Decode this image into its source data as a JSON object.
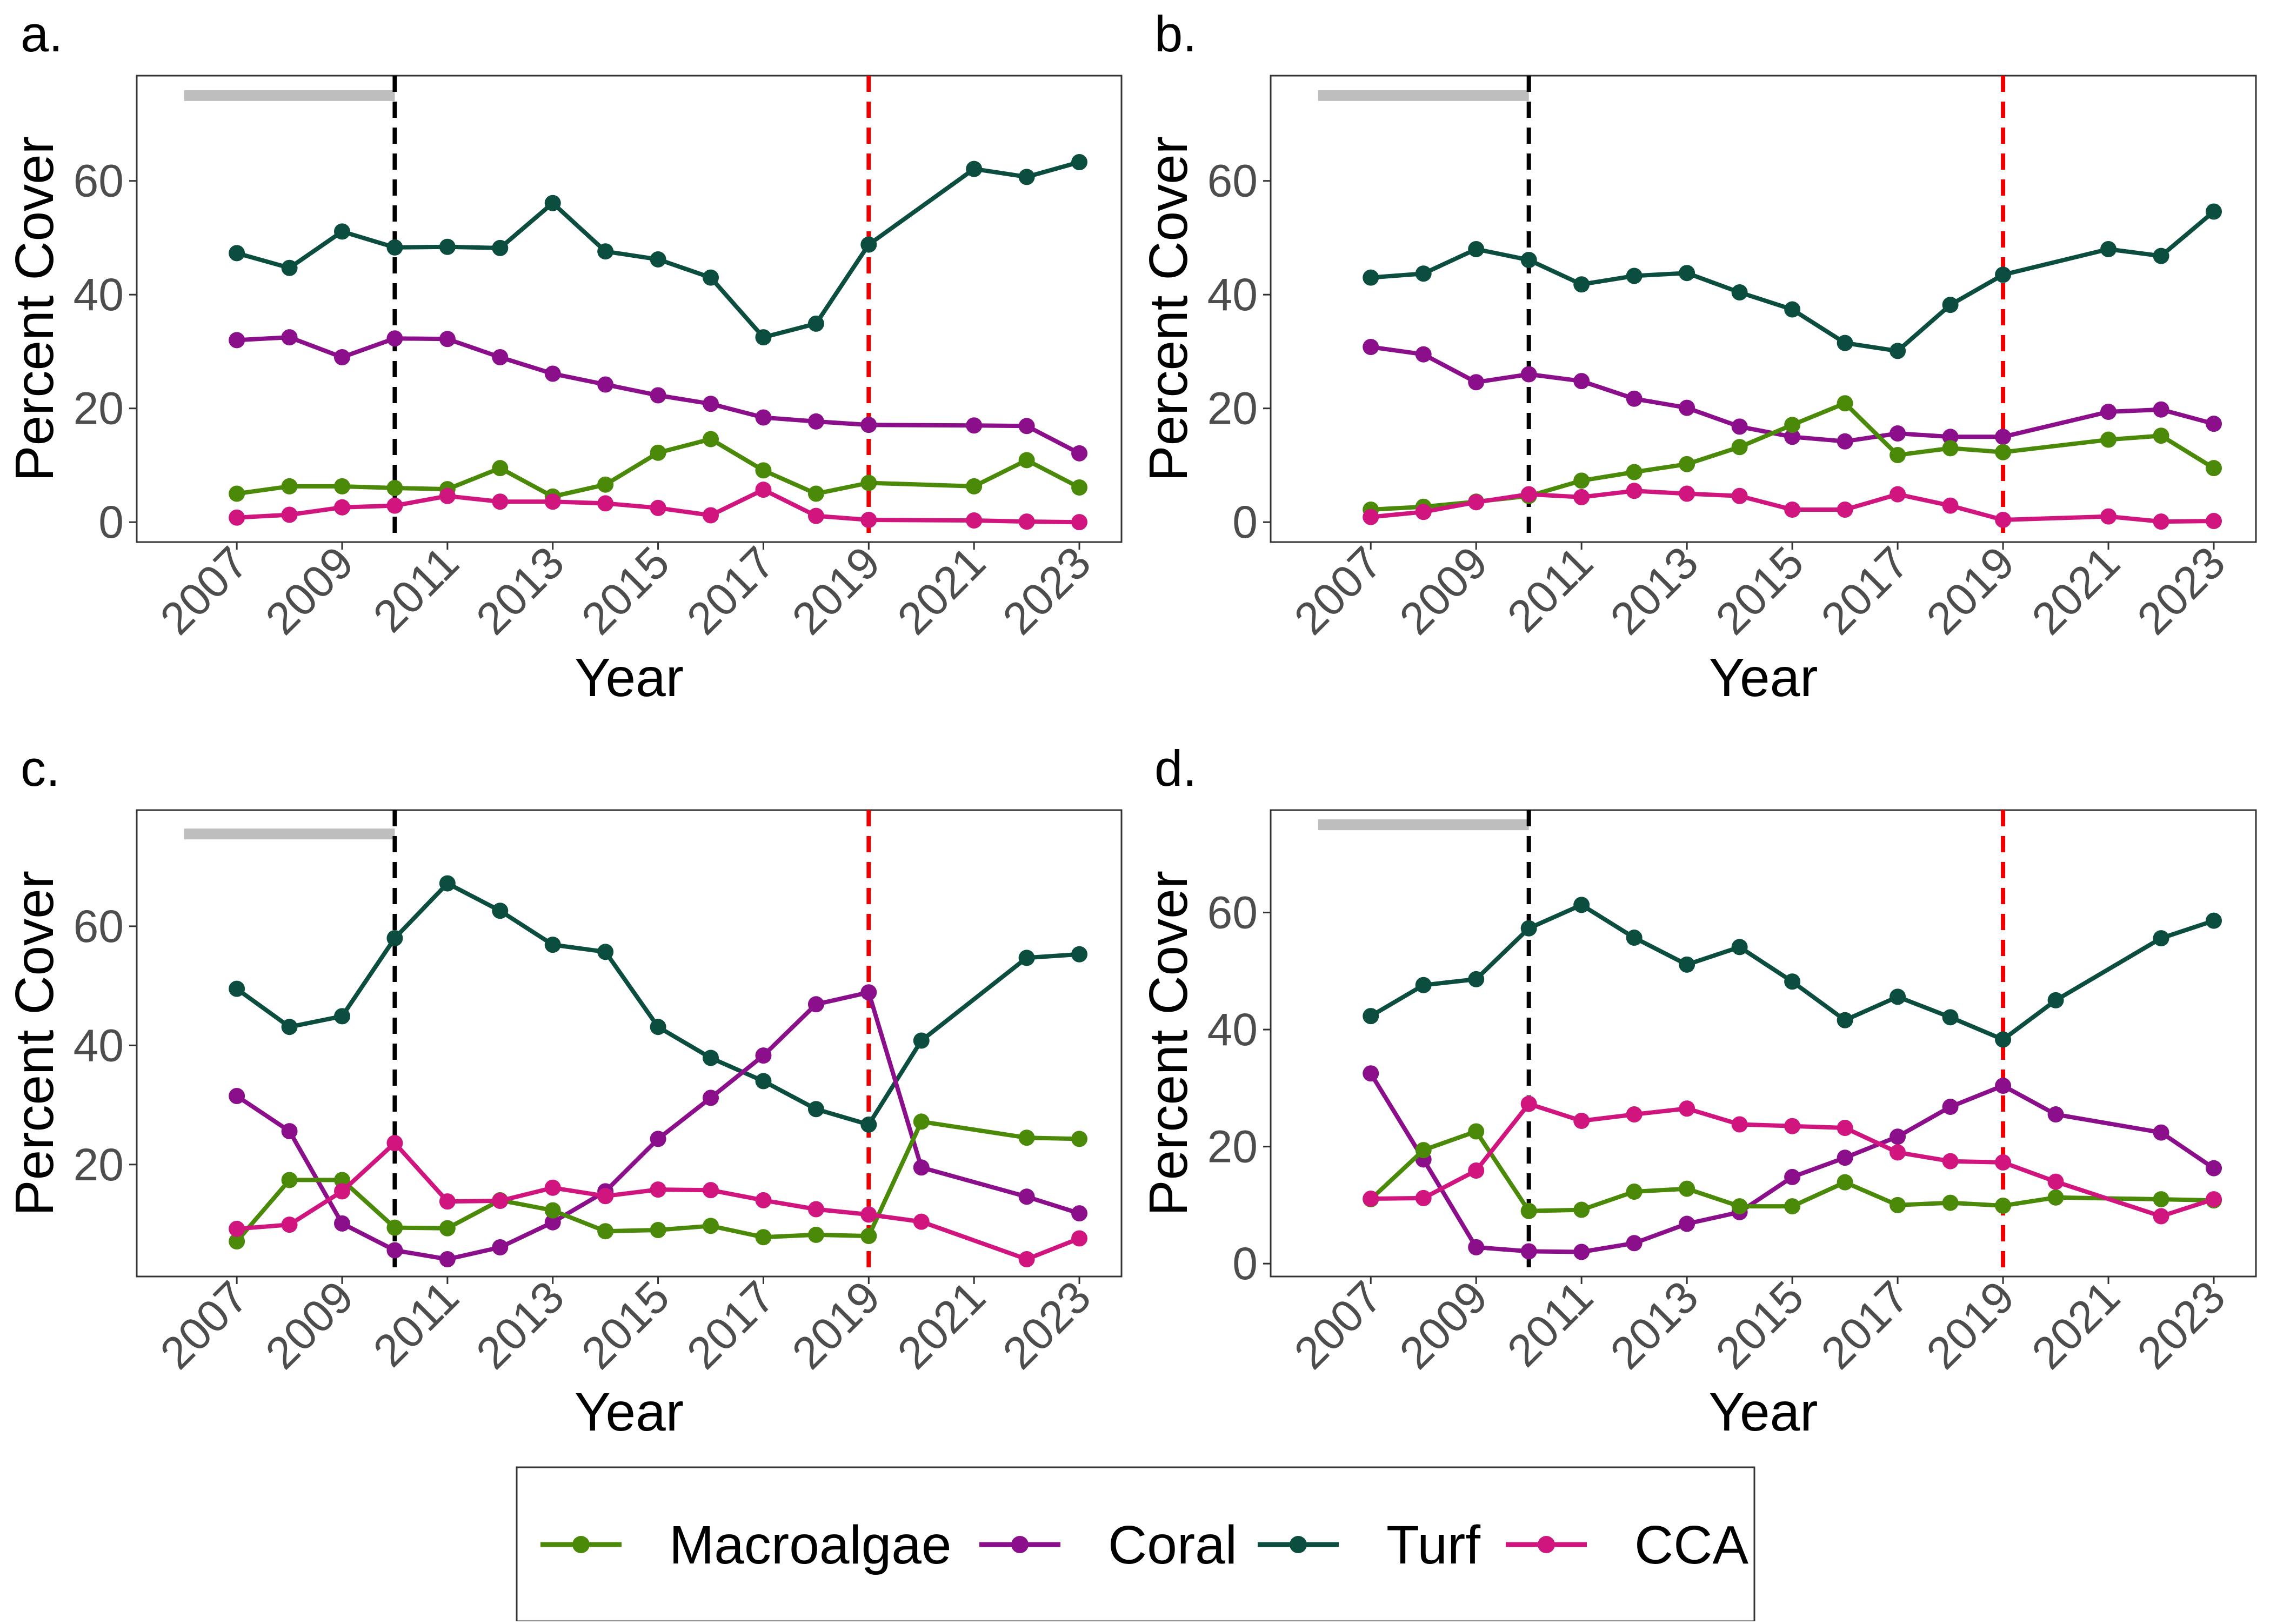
{
  "colors": {
    "Macroalgae": "#4b8a08",
    "Coral": "#8b0f8b",
    "Turf": "#0b4d3e",
    "CCA": "#d1157f",
    "reference_line_black": "#000000",
    "reference_line_red": "#ee0000",
    "period_bar": "#bebebe"
  },
  "legend": {
    "items": [
      "Macroalgae",
      "Coral",
      "Turf",
      "CCA"
    ]
  },
  "chart_data": [
    {
      "type": "line",
      "panel_label": "a.",
      "xlabel": "Year",
      "ylabel": "Percent Cover",
      "x_ticks": [
        2007,
        2009,
        2011,
        2013,
        2015,
        2017,
        2019,
        2021,
        2023
      ],
      "y_ticks": [
        0,
        20,
        40,
        60
      ],
      "xlim": [
        2005.1,
        2023.8
      ],
      "ylim": [
        -3.5,
        78.5
      ],
      "grid": false,
      "reference_lines": [
        {
          "x": 2010,
          "color": "black",
          "style": "dashed"
        },
        {
          "x": 2019,
          "color": "red",
          "style": "dashed"
        }
      ],
      "period_bar": {
        "x": [
          2006.0,
          2010.0
        ],
        "y": 75
      },
      "series": [
        {
          "name": "Macroalgae",
          "x": [
            2007,
            2008,
            2009,
            2010,
            2011,
            2012,
            2013,
            2014,
            2015,
            2016,
            2017,
            2018,
            2019,
            2021,
            2022,
            2023
          ],
          "y": [
            5,
            6.3,
            6.3,
            6,
            5.8,
            9.5,
            4.5,
            6.6,
            12.2,
            14.6,
            9.1,
            5,
            6.9,
            6.3,
            10.9,
            6.1
          ]
        },
        {
          "name": "Coral",
          "x": [
            2007,
            2008,
            2009,
            2010,
            2011,
            2012,
            2013,
            2014,
            2015,
            2016,
            2017,
            2018,
            2019,
            2021,
            2022,
            2023
          ],
          "y": [
            32,
            32.5,
            29,
            32.3,
            32.2,
            29,
            26.1,
            24.2,
            22.3,
            20.8,
            18.4,
            17.7,
            17.1,
            17,
            16.9,
            12.1
          ]
        },
        {
          "name": "Turf",
          "x": [
            2007,
            2008,
            2009,
            2010,
            2011,
            2012,
            2013,
            2014,
            2015,
            2016,
            2017,
            2018,
            2019,
            2021,
            2022,
            2023
          ],
          "y": [
            47.3,
            44.7,
            51.1,
            48.3,
            48.4,
            48.2,
            56.1,
            47.6,
            46.2,
            43,
            32.5,
            34.9,
            48.8,
            62.1,
            60.7,
            63.3
          ]
        },
        {
          "name": "CCA",
          "x": [
            2007,
            2008,
            2009,
            2010,
            2011,
            2012,
            2013,
            2014,
            2015,
            2016,
            2017,
            2018,
            2019,
            2021,
            2022,
            2023
          ],
          "y": [
            0.8,
            1.3,
            2.6,
            2.9,
            4.6,
            3.6,
            3.6,
            3.3,
            2.5,
            1.2,
            5.7,
            1.1,
            0.4,
            0.3,
            0.1,
            0
          ]
        }
      ]
    },
    {
      "type": "line",
      "panel_label": "b.",
      "xlabel": "Year",
      "ylabel": "Percent Cover",
      "x_ticks": [
        2007,
        2009,
        2011,
        2013,
        2015,
        2017,
        2019,
        2021,
        2023
      ],
      "y_ticks": [
        0,
        20,
        40,
        60
      ],
      "xlim": [
        2005.1,
        2023.8
      ],
      "ylim": [
        -3.5,
        78.5
      ],
      "grid": false,
      "reference_lines": [
        {
          "x": 2010,
          "color": "black",
          "style": "dashed"
        },
        {
          "x": 2019,
          "color": "red",
          "style": "dashed"
        }
      ],
      "period_bar": {
        "x": [
          2006.0,
          2010.0
        ],
        "y": 75
      },
      "series": [
        {
          "name": "Macroalgae",
          "x": [
            2007,
            2008,
            2009,
            2010,
            2011,
            2012,
            2013,
            2014,
            2015,
            2016,
            2017,
            2018,
            2019,
            2021,
            2022,
            2023
          ],
          "y": [
            2.2,
            2.7,
            3.6,
            4.6,
            7.3,
            8.8,
            10.2,
            13.2,
            17.1,
            20.9,
            11.8,
            13,
            12.3,
            14.5,
            15.2,
            9.5
          ]
        },
        {
          "name": "Coral",
          "x": [
            2007,
            2008,
            2009,
            2010,
            2011,
            2012,
            2013,
            2014,
            2015,
            2016,
            2017,
            2018,
            2019,
            2021,
            2022,
            2023
          ],
          "y": [
            30.8,
            29.5,
            24.6,
            26,
            24.8,
            21.7,
            20.1,
            16.8,
            15,
            14.2,
            15.6,
            15,
            15,
            19.4,
            19.8,
            17.3
          ]
        },
        {
          "name": "Turf",
          "x": [
            2007,
            2008,
            2009,
            2010,
            2011,
            2012,
            2013,
            2014,
            2015,
            2016,
            2017,
            2018,
            2019,
            2021,
            2022,
            2023
          ],
          "y": [
            43,
            43.7,
            48,
            46.1,
            41.8,
            43.3,
            43.8,
            40.4,
            37.4,
            31.5,
            30.1,
            38.2,
            43.5,
            48,
            46.8,
            54.6
          ]
        },
        {
          "name": "CCA",
          "x": [
            2007,
            2008,
            2009,
            2010,
            2011,
            2012,
            2013,
            2014,
            2015,
            2016,
            2017,
            2018,
            2019,
            2021,
            2022,
            2023
          ],
          "y": [
            0.9,
            1.8,
            3.5,
            4.9,
            4.4,
            5.5,
            5,
            4.6,
            2.2,
            2.2,
            4.9,
            2.9,
            0.4,
            1,
            0.1,
            0.2
          ]
        }
      ]
    },
    {
      "type": "line",
      "panel_label": "c.",
      "xlabel": "Year",
      "ylabel": "Percent Cover",
      "x_ticks": [
        2007,
        2009,
        2011,
        2013,
        2015,
        2017,
        2019,
        2021,
        2023
      ],
      "y_ticks": [
        20,
        40,
        60
      ],
      "xlim": [
        2005.1,
        2023.8
      ],
      "ylim": [
        1.2,
        79.5
      ],
      "grid": false,
      "reference_lines": [
        {
          "x": 2010,
          "color": "black",
          "style": "dashed"
        },
        {
          "x": 2019,
          "color": "red",
          "style": "dashed"
        }
      ],
      "period_bar": {
        "x": [
          2006.0,
          2010.0
        ],
        "y": 75.5
      },
      "series": [
        {
          "name": "Macroalgae",
          "x": [
            2007,
            2008,
            2009,
            2010,
            2011,
            2012,
            2013,
            2014,
            2015,
            2016,
            2017,
            2018,
            2019,
            2020,
            2022,
            2023
          ],
          "y": [
            7.1,
            17.4,
            17.4,
            9.4,
            9.3,
            14,
            12.3,
            8.8,
            9,
            9.7,
            7.8,
            8.2,
            8,
            27.2,
            24.5,
            24.3
          ]
        },
        {
          "name": "Coral",
          "x": [
            2007,
            2008,
            2009,
            2010,
            2011,
            2012,
            2013,
            2014,
            2015,
            2016,
            2017,
            2018,
            2019,
            2020,
            2022,
            2023
          ],
          "y": [
            31.5,
            25.6,
            10.1,
            5.6,
            4.1,
            6.1,
            10.3,
            15.5,
            24.3,
            31.2,
            38.3,
            46.9,
            48.9,
            19.5,
            14.6,
            11.8
          ]
        },
        {
          "name": "Turf",
          "x": [
            2007,
            2008,
            2009,
            2010,
            2011,
            2012,
            2013,
            2014,
            2015,
            2016,
            2017,
            2018,
            2019,
            2020,
            2022,
            2023
          ],
          "y": [
            49.5,
            43.1,
            44.9,
            58,
            67.2,
            62.6,
            56.9,
            55.7,
            43.1,
            37.9,
            34,
            29.3,
            26.7,
            40.8,
            54.7,
            55.3
          ]
        },
        {
          "name": "CCA",
          "x": [
            2007,
            2008,
            2009,
            2010,
            2011,
            2012,
            2013,
            2014,
            2015,
            2016,
            2017,
            2018,
            2019,
            2020,
            2022,
            2023
          ],
          "y": [
            9.2,
            9.9,
            15.5,
            23.6,
            13.8,
            13.9,
            16.1,
            14.7,
            15.8,
            15.7,
            14,
            12.5,
            11.6,
            10.4,
            4.1,
            7.6
          ]
        }
      ]
    },
    {
      "type": "line",
      "panel_label": "d.",
      "xlabel": "Year",
      "ylabel": "Percent Cover",
      "x_ticks": [
        2007,
        2009,
        2011,
        2013,
        2015,
        2017,
        2019,
        2021,
        2023
      ],
      "y_ticks": [
        0,
        20,
        40,
        60
      ],
      "xlim": [
        2005.1,
        2023.8
      ],
      "ylim": [
        -2.2,
        77.5
      ],
      "grid": false,
      "reference_lines": [
        {
          "x": 2010,
          "color": "black",
          "style": "dashed"
        },
        {
          "x": 2019,
          "color": "red",
          "style": "dashed"
        }
      ],
      "period_bar": {
        "x": [
          2006.0,
          2010.0
        ],
        "y": 75
      },
      "series": [
        {
          "name": "Macroalgae",
          "x": [
            2007,
            2008,
            2009,
            2010,
            2011,
            2012,
            2013,
            2014,
            2015,
            2016,
            2017,
            2018,
            2019,
            2020,
            2022,
            2023
          ],
          "y": [
            11,
            19.4,
            22.6,
            9,
            9.2,
            12.3,
            12.8,
            9.8,
            9.8,
            13.9,
            10,
            10.4,
            9.9,
            11.3,
            11,
            10.8
          ]
        },
        {
          "name": "Coral",
          "x": [
            2007,
            2008,
            2009,
            2010,
            2011,
            2012,
            2013,
            2014,
            2015,
            2016,
            2017,
            2018,
            2019,
            2020,
            2022,
            2023
          ],
          "y": [
            32.5,
            17.8,
            2.8,
            2.1,
            2,
            3.5,
            6.8,
            8.8,
            14.8,
            18.1,
            21.7,
            26.8,
            30.4,
            25.5,
            22.4,
            16.3
          ]
        },
        {
          "name": "Turf",
          "x": [
            2007,
            2008,
            2009,
            2010,
            2011,
            2012,
            2013,
            2014,
            2015,
            2016,
            2017,
            2018,
            2019,
            2020,
            2022,
            2023
          ],
          "y": [
            42.3,
            47.6,
            48.6,
            57.3,
            61.3,
            55.7,
            51.1,
            54.1,
            48.2,
            41.6,
            45.6,
            42.1,
            38.3,
            45,
            55.6,
            58.6
          ]
        },
        {
          "name": "CCA",
          "x": [
            2007,
            2008,
            2009,
            2010,
            2011,
            2012,
            2013,
            2014,
            2015,
            2016,
            2017,
            2018,
            2019,
            2020,
            2022,
            2023
          ],
          "y": [
            11.1,
            11.2,
            15.9,
            27.3,
            24.4,
            25.5,
            26.5,
            23.8,
            23.5,
            23.2,
            19,
            17.5,
            17.3,
            14,
            8.1,
            11
          ]
        }
      ]
    }
  ]
}
